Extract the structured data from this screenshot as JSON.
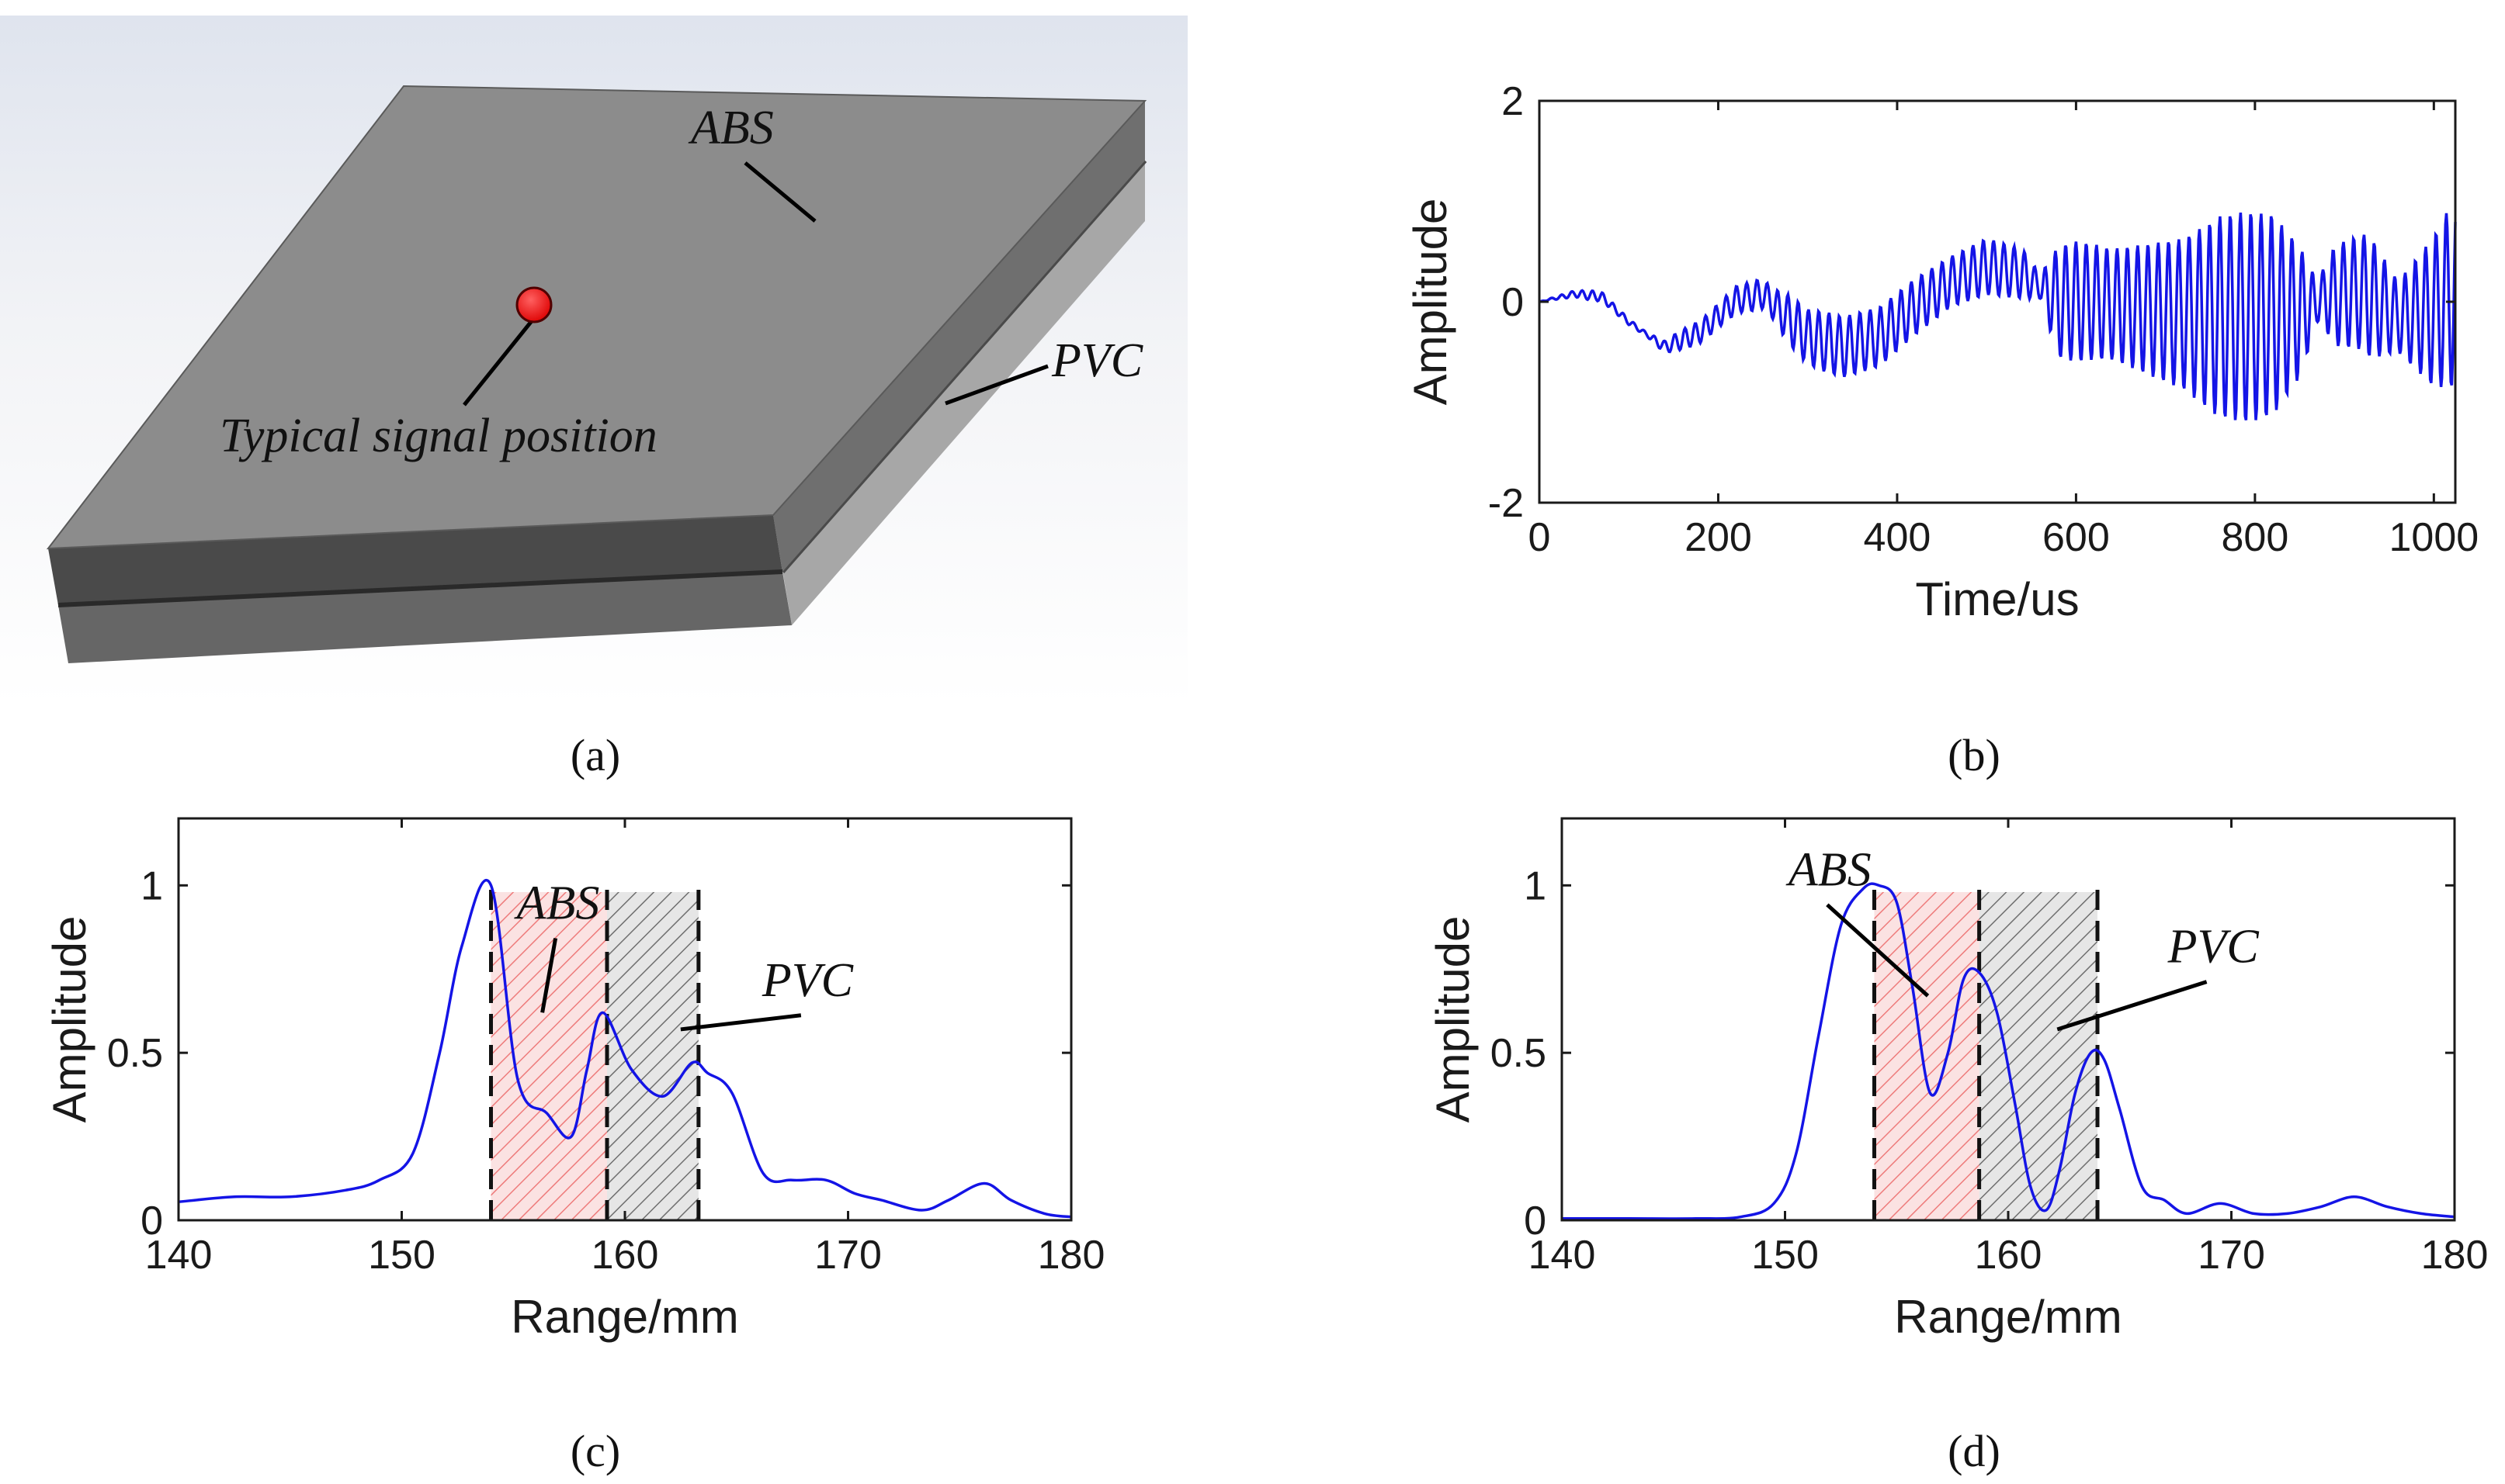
{
  "panel_labels": [
    "(a)",
    "(b)",
    "(c)",
    "(d)"
  ],
  "diagram": {
    "layer_top_label": "ABS",
    "layer_bottom_label": "PVC",
    "point_label": "Typical signal position",
    "point_color": "#ff0000"
  },
  "chart_data": [
    {
      "id": "b",
      "type": "line",
      "title": "",
      "xlabel": "Time/us",
      "ylabel": "Amplitude",
      "xlim": [
        0,
        1024
      ],
      "ylim": [
        -2,
        2
      ],
      "xticks": [
        0,
        200,
        400,
        600,
        800,
        1000
      ],
      "xtick_labels": [
        "0",
        "200",
        "400",
        "600",
        "800",
        "1000"
      ],
      "yticks": [
        -2,
        0,
        2
      ],
      "ytick_labels": [
        "-2",
        "0",
        "2"
      ],
      "line_color": "#1414e6",
      "series": [
        {
          "name": "signal",
          "kind": "oscillation",
          "sample_step_us": 1,
          "envelope_x": [
            0,
            60,
            120,
            160,
            200,
            240,
            260,
            280,
            320,
            360,
            420,
            460,
            500,
            540,
            560,
            580,
            600,
            640,
            680,
            720,
            760,
            790,
            820,
            850,
            870,
            890,
            930,
            960,
            1000,
            1024
          ],
          "envelope_y": [
            0,
            0.05,
            0.02,
            0.1,
            0.12,
            0.15,
            0.15,
            0.25,
            0.3,
            0.3,
            0.28,
            0.25,
            0.28,
            0.25,
            0.12,
            0.55,
            0.6,
            0.55,
            0.65,
            0.75,
            1.0,
            1.05,
            1.0,
            0.65,
            0.2,
            0.5,
            0.6,
            0.35,
            0.75,
            0.95
          ],
          "baseline_x": [
            0,
            40,
            70,
            100,
            140,
            180,
            220,
            250,
            270,
            300,
            340,
            380,
            420,
            460,
            500,
            540,
            560,
            580,
            620,
            660,
            700,
            750,
            800,
            850,
            880,
            920,
            960,
            1000,
            1024
          ],
          "baseline_y": [
            0,
            0.08,
            0.05,
            -0.2,
            -0.45,
            -0.3,
            0.02,
            0.08,
            -0.1,
            -0.35,
            -0.45,
            -0.35,
            -0.05,
            0.2,
            0.35,
            0.28,
            0.15,
            0.0,
            0.0,
            -0.05,
            -0.1,
            -0.15,
            -0.15,
            -0.1,
            0.05,
            0.1,
            -0.15,
            -0.1,
            0.1
          ],
          "carrier_cycles": [
            0,
            0,
            0,
            0.5,
            4,
            5,
            5,
            5,
            6,
            6,
            6,
            6,
            6,
            6,
            6,
            6,
            6,
            6,
            6,
            6,
            6,
            6,
            6,
            6,
            6,
            6,
            6,
            6,
            6,
            6
          ]
        }
      ]
    },
    {
      "id": "c",
      "type": "line",
      "title": "",
      "xlabel": "Range/mm",
      "ylabel": "Amplitude",
      "xlim": [
        140,
        180
      ],
      "ylim": [
        0,
        1.2
      ],
      "xticks": [
        140,
        150,
        160,
        170,
        180
      ],
      "xtick_labels": [
        "140",
        "150",
        "160",
        "170",
        "180"
      ],
      "yticks": [
        0,
        0.5,
        1
      ],
      "ytick_labels": [
        "0",
        "0.5",
        "1"
      ],
      "line_color": "#1414e6",
      "series": [
        {
          "name": "range profile",
          "x": [
            140,
            142.5,
            145,
            147.5,
            149,
            150.5,
            151.7,
            152.7,
            154,
            155.2,
            156.5,
            157.6,
            158.3,
            159,
            160.3,
            161.7,
            163,
            163.7,
            164.8,
            166.2,
            167.5,
            169,
            170.3,
            171.5,
            173.3,
            174.5,
            176.1,
            177.3,
            178.8,
            180
          ],
          "y": [
            0.055,
            0.07,
            0.07,
            0.09,
            0.12,
            0.2,
            0.5,
            0.82,
            1.0,
            0.42,
            0.32,
            0.25,
            0.45,
            0.62,
            0.45,
            0.37,
            0.47,
            0.44,
            0.38,
            0.14,
            0.12,
            0.12,
            0.08,
            0.06,
            0.03,
            0.06,
            0.11,
            0.06,
            0.02,
            0.01
          ]
        }
      ],
      "regions": [
        {
          "label": "ABS",
          "x0": 154,
          "x1": 159.2,
          "ymax": 0.98,
          "color": "#f08080"
        },
        {
          "label": "PVC",
          "x0": 159.2,
          "x1": 163.3,
          "ymax": 0.98,
          "color": "#707070"
        }
      ],
      "vlines": [
        154,
        159.2,
        163.3
      ],
      "annotations": [
        {
          "text": "ABS",
          "text_x": 155.5,
          "text_y": 0.9,
          "to_x": 156.3,
          "to_y": 0.62
        },
        {
          "text": "PVC",
          "text_x": 166.5,
          "text_y": 0.67,
          "to_x": 162.5,
          "to_y": 0.57
        }
      ]
    },
    {
      "id": "d",
      "type": "line",
      "title": "",
      "xlabel": "Range/mm",
      "ylabel": "Amplitude",
      "xlim": [
        140,
        180
      ],
      "ylim": [
        0,
        1.2
      ],
      "xticks": [
        140,
        150,
        160,
        170,
        180
      ],
      "xtick_labels": [
        "140",
        "150",
        "160",
        "170",
        "180"
      ],
      "yticks": [
        0,
        0.5,
        1
      ],
      "ytick_labels": [
        "0",
        "0.5",
        "1"
      ],
      "line_color": "#1414e6",
      "series": [
        {
          "name": "range profile",
          "x": [
            140,
            143,
            146,
            148,
            149.5,
            150.5,
            151.5,
            152.5,
            153.5,
            154.2,
            155,
            155.7,
            156.5,
            157.3,
            158,
            158.7,
            159.5,
            160.3,
            161,
            161.7,
            162.3,
            163,
            163.7,
            164.3,
            165,
            166,
            167,
            168,
            169.5,
            171,
            172.5,
            174,
            175.5,
            177,
            178.5,
            180
          ],
          "y": [
            0.005,
            0.005,
            0.005,
            0.01,
            0.05,
            0.2,
            0.55,
            0.88,
            0.99,
            1.0,
            0.95,
            0.7,
            0.38,
            0.5,
            0.72,
            0.74,
            0.62,
            0.35,
            0.1,
            0.03,
            0.15,
            0.38,
            0.5,
            0.48,
            0.33,
            0.1,
            0.06,
            0.02,
            0.05,
            0.02,
            0.02,
            0.04,
            0.07,
            0.04,
            0.02,
            0.01
          ]
        }
      ],
      "regions": [
        {
          "label": "ABS",
          "x0": 154,
          "x1": 158.7,
          "ymax": 0.98,
          "color": "#f08080"
        },
        {
          "label": "PVC",
          "x0": 158.7,
          "x1": 164,
          "ymax": 0.98,
          "color": "#707070"
        }
      ],
      "vlines": [
        154,
        158.7,
        164
      ],
      "annotations": [
        {
          "text": "ABS",
          "text_x": 150.5,
          "text_y": 1.0,
          "to_x": 156.4,
          "to_y": 0.67
        },
        {
          "text": "PVC",
          "text_x": 167.5,
          "text_y": 0.77,
          "to_x": 162.2,
          "to_y": 0.57
        }
      ]
    }
  ]
}
